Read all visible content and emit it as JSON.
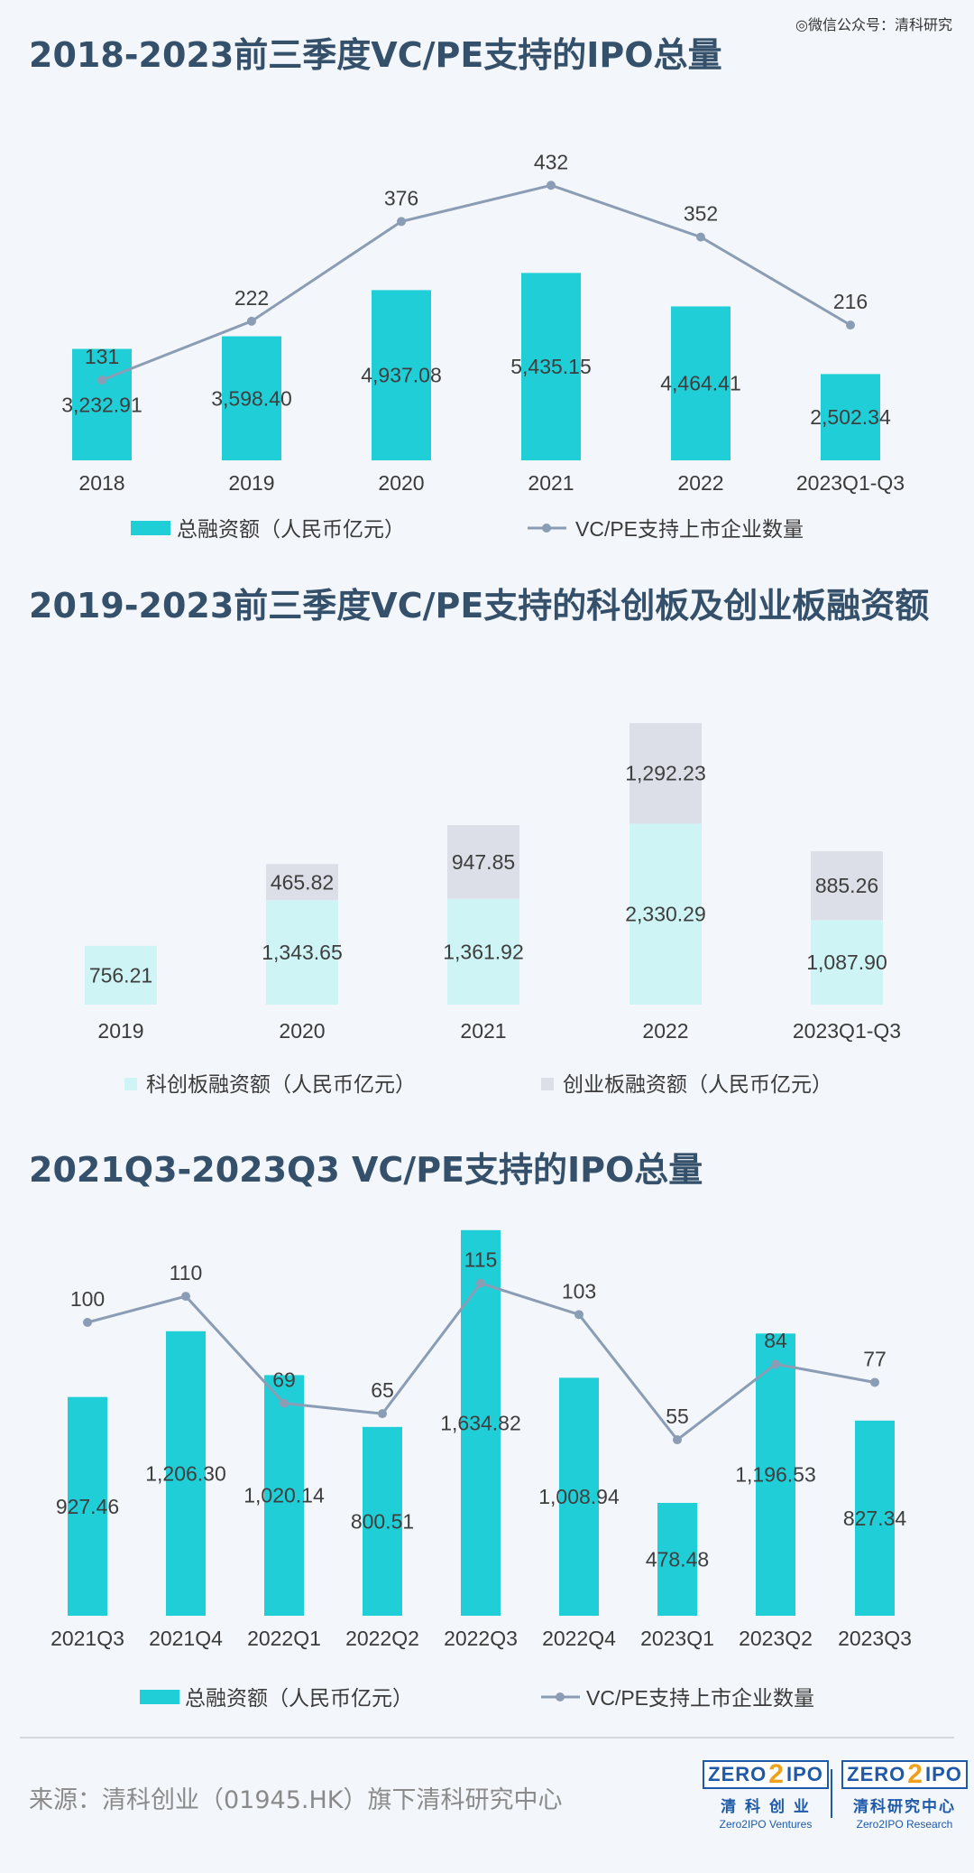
{
  "watermark": "◎微信公众号：清科研究",
  "colors": {
    "bar_total": "#20ced8",
    "line": "#8a9db4",
    "star": "#cff4f5",
    "gem": "#dcdfe8",
    "title": "#34506a",
    "brand": "#1e5aa8"
  },
  "chart_data": [
    {
      "type": "bar",
      "title": "2018-2023前三季度VC/PE支持的IPO总量",
      "categories": [
        "2018",
        "2019",
        "2020",
        "2021",
        "2022",
        "2023Q1-Q3"
      ],
      "series": [
        {
          "name": "总融资额（人民币亿元）",
          "type": "bar",
          "values": [
            3232.91,
            3598.4,
            4937.08,
            5435.15,
            4464.41,
            2502.34
          ],
          "labels": [
            "3,232.91",
            "3,598.40",
            "4,937.08",
            "5,435.15",
            "4,464.41",
            "2,502.34"
          ]
        },
        {
          "name": "VC/PE支持上市企业数量",
          "type": "line",
          "values": [
            131,
            222,
            376,
            432,
            352,
            216
          ],
          "labels": [
            "131",
            "222",
            "376",
            "432",
            "352",
            "216"
          ]
        }
      ],
      "legend": "bottom"
    },
    {
      "type": "bar",
      "stacked": true,
      "title": "2019-2023前三季度VC/PE支持的科创板及创业板融资额",
      "categories": [
        "2019",
        "2020",
        "2021",
        "2022",
        "2023Q1-Q3"
      ],
      "series": [
        {
          "name": "科创板融资额（人民币亿元）",
          "values": [
            756.21,
            1343.65,
            1361.92,
            2330.29,
            1087.9
          ],
          "labels": [
            "756.21",
            "1,343.65",
            "1,361.92",
            "2,330.29",
            "1,087.90"
          ]
        },
        {
          "name": "创业板融资额（人民币亿元）",
          "values": [
            null,
            465.82,
            947.85,
            1292.23,
            885.26
          ],
          "labels": [
            "",
            "465.82",
            "947.85",
            "1,292.23",
            "885.26"
          ]
        }
      ],
      "legend": "bottom"
    },
    {
      "type": "bar",
      "title": "2021Q3-2023Q3 VC/PE支持的IPO总量",
      "categories": [
        "2021Q3",
        "2021Q4",
        "2022Q1",
        "2022Q2",
        "2022Q3",
        "2022Q4",
        "2023Q1",
        "2023Q2",
        "2023Q3"
      ],
      "series": [
        {
          "name": "总融资额（人民币亿元）",
          "type": "bar",
          "values": [
            927.46,
            1206.3,
            1020.14,
            800.51,
            1634.82,
            1008.94,
            478.48,
            1196.53,
            827.34
          ],
          "labels": [
            "927.46",
            "1,206.30",
            "1,020.14",
            "800.51",
            "1,634.82",
            "1,008.94",
            "478.48",
            "1,196.53",
            "827.34"
          ]
        },
        {
          "name": "VC/PE支持上市企业数量",
          "type": "line",
          "values": [
            100,
            110,
            69,
            65,
            115,
            103,
            55,
            84,
            77
          ],
          "labels": [
            "100",
            "110",
            "69",
            "65",
            "115",
            "103",
            "55",
            "84",
            "77"
          ]
        }
      ],
      "legend": "bottom"
    }
  ],
  "footer": {
    "source": "来源：清科创业（01945.HK）旗下清科研究中心",
    "logo_box_left": "ZERO",
    "logo_box_two": "2",
    "logo_box_right": "IPO",
    "logo1_cn": "清 科 创 业",
    "logo1_en": "Zero2IPO Ventures",
    "logo2_cn": "清科研究中心",
    "logo2_en": "Zero2IPO Research"
  }
}
